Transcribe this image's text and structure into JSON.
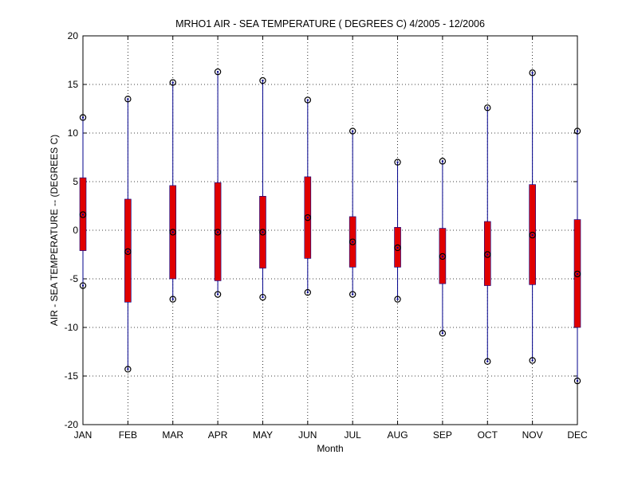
{
  "chart_data": {
    "type": "box-range",
    "title": "MRHO1  AIR - SEA TEMPERATURE ( DEGREES C) 4/2005 - 12/2006",
    "xlabel": "Month",
    "ylabel": "AIR - SEA TEMPERATURE -- (DEGREES C)",
    "categories": [
      "JAN",
      "FEB",
      "MAR",
      "APR",
      "MAY",
      "JUN",
      "JUL",
      "AUG",
      "SEP",
      "OCT",
      "NOV",
      "DEC"
    ],
    "ylim": [
      -20,
      20
    ],
    "yticks": [
      -20,
      -15,
      -10,
      -5,
      0,
      5,
      10,
      15,
      20
    ],
    "grid": true,
    "series": [
      {
        "min": [
          -5.7,
          -14.3,
          -7.1,
          -6.6,
          -6.9,
          -6.4,
          -6.6,
          -7.1,
          -10.6,
          -13.5,
          -13.4,
          -15.5
        ],
        "q1": [
          -2.1,
          -7.4,
          -5.0,
          -5.2,
          -3.9,
          -2.9,
          -3.8,
          -3.8,
          -5.5,
          -5.7,
          -5.6,
          -10.0
        ],
        "mean": [
          1.6,
          -2.2,
          -0.2,
          -0.2,
          -0.2,
          1.3,
          -1.2,
          -1.8,
          -2.7,
          -2.5,
          -0.5,
          -4.5
        ],
        "q3": [
          5.4,
          3.2,
          4.6,
          4.9,
          3.5,
          5.5,
          1.4,
          0.3,
          0.2,
          0.9,
          4.7,
          1.1
        ],
        "max": [
          11.6,
          13.5,
          15.2,
          16.3,
          15.4,
          13.4,
          10.2,
          7.0,
          7.1,
          12.6,
          16.2,
          10.2
        ]
      }
    ],
    "colors": {
      "whisker": "#00008b",
      "box": "#e00000",
      "marker": "#000000",
      "grid": "#000000"
    }
  }
}
